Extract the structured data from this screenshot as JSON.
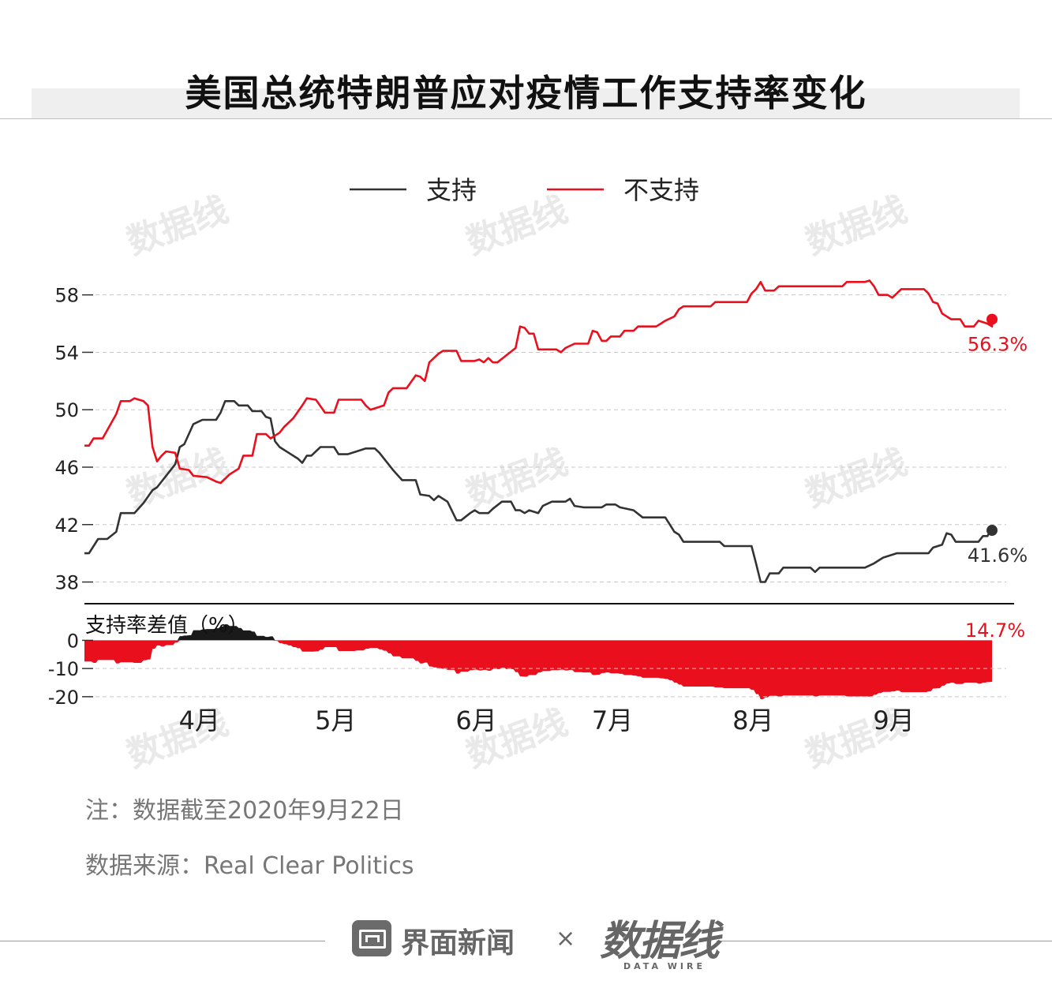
{
  "title": "美国总统特朗普应对疫情工作支持率变化",
  "note": "注：数据截至2020年9月22日",
  "source": "数据来源：Real Clear Politics",
  "footer": {
    "brand": "界面新闻",
    "separator": "×",
    "logo_text": "数据线",
    "logo_sub": "DATA WIRE"
  },
  "chart_data": [
    {
      "type": "line",
      "legend_position": "top-center",
      "grid": true,
      "x_start": "2020-03-06",
      "x_end": "2020-09-22",
      "x_ticks": [
        {
          "label": "4月",
          "date": "2020-03-31"
        },
        {
          "label": "5月",
          "date": "2020-04-30"
        },
        {
          "label": "6月",
          "date": "2020-05-31"
        },
        {
          "label": "7月",
          "date": "2020-06-30"
        },
        {
          "label": "8月",
          "date": "2020-07-31"
        },
        {
          "label": "9月",
          "date": "2020-08-31"
        }
      ],
      "ylim": [
        36.6,
        61.5
      ],
      "y_ticks": [
        38,
        42,
        46,
        50,
        54,
        58
      ],
      "series": [
        {
          "name": "支持",
          "color": "#333333",
          "end_label": "41.6%",
          "points": [
            [
              "2020-03-06",
              40.0
            ],
            [
              "2020-03-07",
              40.0
            ],
            [
              "2020-03-09",
              41.0
            ],
            [
              "2020-03-11",
              41.0
            ],
            [
              "2020-03-13",
              41.5
            ],
            [
              "2020-03-14",
              42.8
            ],
            [
              "2020-03-17",
              42.8
            ],
            [
              "2020-03-19",
              43.5
            ],
            [
              "2020-03-21",
              44.4
            ],
            [
              "2020-03-22",
              44.6
            ],
            [
              "2020-03-24",
              45.4
            ],
            [
              "2020-03-26",
              46.2
            ],
            [
              "2020-03-27",
              47.4
            ],
            [
              "2020-03-28",
              47.6
            ],
            [
              "2020-03-30",
              49.0
            ],
            [
              "2020-04-01",
              49.3
            ],
            [
              "2020-04-04",
              49.3
            ],
            [
              "2020-04-05",
              49.8
            ],
            [
              "2020-04-06",
              50.6
            ],
            [
              "2020-04-08",
              50.6
            ],
            [
              "2020-04-09",
              50.3
            ],
            [
              "2020-04-11",
              50.3
            ],
            [
              "2020-04-12",
              49.9
            ],
            [
              "2020-04-14",
              49.9
            ],
            [
              "2020-04-15",
              49.5
            ],
            [
              "2020-04-16",
              49.4
            ],
            [
              "2020-04-17",
              47.8
            ],
            [
              "2020-04-18",
              47.4
            ],
            [
              "2020-04-20",
              47.0
            ],
            [
              "2020-04-22",
              46.6
            ],
            [
              "2020-04-23",
              46.3
            ],
            [
              "2020-04-24",
              46.8
            ],
            [
              "2020-04-25",
              46.8
            ],
            [
              "2020-04-27",
              47.4
            ],
            [
              "2020-04-30",
              47.4
            ],
            [
              "2020-05-01",
              46.9
            ],
            [
              "2020-05-03",
              46.9
            ],
            [
              "2020-05-05",
              47.1
            ],
            [
              "2020-05-07",
              47.3
            ],
            [
              "2020-05-09",
              47.3
            ],
            [
              "2020-05-10",
              47.0
            ],
            [
              "2020-05-11",
              46.6
            ],
            [
              "2020-05-13",
              45.8
            ],
            [
              "2020-05-15",
              45.1
            ],
            [
              "2020-05-18",
              45.1
            ],
            [
              "2020-05-19",
              44.1
            ],
            [
              "2020-05-21",
              44.0
            ],
            [
              "2020-05-22",
              43.7
            ],
            [
              "2020-05-23",
              44.0
            ],
            [
              "2020-05-25",
              43.6
            ],
            [
              "2020-05-27",
              42.3
            ],
            [
              "2020-05-28",
              42.3
            ],
            [
              "2020-05-30",
              42.8
            ],
            [
              "2020-05-31",
              43.0
            ],
            [
              "2020-06-01",
              42.8
            ],
            [
              "2020-06-03",
              42.8
            ],
            [
              "2020-06-04",
              43.1
            ],
            [
              "2020-06-06",
              43.6
            ],
            [
              "2020-06-08",
              43.6
            ],
            [
              "2020-06-09",
              43.0
            ],
            [
              "2020-06-10",
              43.0
            ],
            [
              "2020-06-11",
              42.8
            ],
            [
              "2020-06-12",
              43.0
            ],
            [
              "2020-06-14",
              42.8
            ],
            [
              "2020-06-15",
              43.3
            ],
            [
              "2020-06-17",
              43.6
            ],
            [
              "2020-06-20",
              43.6
            ],
            [
              "2020-06-21",
              43.8
            ],
            [
              "2020-06-22",
              43.3
            ],
            [
              "2020-06-24",
              43.2
            ],
            [
              "2020-06-28",
              43.2
            ],
            [
              "2020-06-29",
              43.4
            ],
            [
              "2020-07-01",
              43.4
            ],
            [
              "2020-07-02",
              43.2
            ],
            [
              "2020-07-05",
              43.0
            ],
            [
              "2020-07-07",
              42.5
            ],
            [
              "2020-07-12",
              42.5
            ],
            [
              "2020-07-13",
              42.0
            ],
            [
              "2020-07-14",
              41.5
            ],
            [
              "2020-07-15",
              41.3
            ],
            [
              "2020-07-16",
              40.8
            ],
            [
              "2020-07-24",
              40.8
            ],
            [
              "2020-07-25",
              40.5
            ],
            [
              "2020-07-31",
              40.5
            ],
            [
              "2020-08-01",
              39.3
            ],
            [
              "2020-08-02",
              38.0
            ],
            [
              "2020-08-03",
              38.0
            ],
            [
              "2020-08-04",
              38.6
            ],
            [
              "2020-08-06",
              38.6
            ],
            [
              "2020-08-07",
              39.0
            ],
            [
              "2020-08-13",
              39.0
            ],
            [
              "2020-08-14",
              38.7
            ],
            [
              "2020-08-15",
              39.0
            ],
            [
              "2020-08-25",
              39.0
            ],
            [
              "2020-08-27",
              39.3
            ],
            [
              "2020-08-29",
              39.7
            ],
            [
              "2020-09-01",
              40.0
            ],
            [
              "2020-09-08",
              40.0
            ],
            [
              "2020-09-09",
              40.4
            ],
            [
              "2020-09-11",
              40.6
            ],
            [
              "2020-09-12",
              41.4
            ],
            [
              "2020-09-13",
              41.3
            ],
            [
              "2020-09-14",
              40.8
            ],
            [
              "2020-09-19",
              40.8
            ],
            [
              "2020-09-20",
              41.2
            ],
            [
              "2020-09-21",
              41.2
            ],
            [
              "2020-09-22",
              41.8
            ],
            [
              "2020-09-22",
              41.6
            ]
          ]
        },
        {
          "name": "不支持",
          "color": "#ea0f1d",
          "end_label": "56.3%",
          "points": [
            [
              "2020-03-06",
              47.5
            ],
            [
              "2020-03-07",
              47.5
            ],
            [
              "2020-03-08",
              48.0
            ],
            [
              "2020-03-10",
              48.0
            ],
            [
              "2020-03-13",
              49.7
            ],
            [
              "2020-03-14",
              50.6
            ],
            [
              "2020-03-16",
              50.6
            ],
            [
              "2020-03-17",
              50.8
            ],
            [
              "2020-03-19",
              50.6
            ],
            [
              "2020-03-20",
              50.3
            ],
            [
              "2020-03-21",
              47.4
            ],
            [
              "2020-03-22",
              46.4
            ],
            [
              "2020-03-23",
              46.8
            ],
            [
              "2020-03-24",
              47.1
            ],
            [
              "2020-03-26",
              47.0
            ],
            [
              "2020-03-27",
              45.9
            ],
            [
              "2020-03-29",
              45.8
            ],
            [
              "2020-03-30",
              45.4
            ],
            [
              "2020-04-02",
              45.3
            ],
            [
              "2020-04-04",
              45.0
            ],
            [
              "2020-04-05",
              44.9
            ],
            [
              "2020-04-07",
              45.5
            ],
            [
              "2020-04-09",
              45.9
            ],
            [
              "2020-04-10",
              46.8
            ],
            [
              "2020-04-12",
              46.8
            ],
            [
              "2020-04-13",
              48.3
            ],
            [
              "2020-04-15",
              48.3
            ],
            [
              "2020-04-16",
              48.0
            ],
            [
              "2020-04-18",
              48.4
            ],
            [
              "2020-04-19",
              48.8
            ],
            [
              "2020-04-21",
              49.4
            ],
            [
              "2020-04-23",
              50.3
            ],
            [
              "2020-04-24",
              50.8
            ],
            [
              "2020-04-26",
              50.7
            ],
            [
              "2020-04-28",
              49.8
            ],
            [
              "2020-04-30",
              49.8
            ],
            [
              "2020-05-01",
              50.7
            ],
            [
              "2020-05-06",
              50.7
            ],
            [
              "2020-05-07",
              50.3
            ],
            [
              "2020-05-08",
              50.0
            ],
            [
              "2020-05-10",
              50.2
            ],
            [
              "2020-05-11",
              50.3
            ],
            [
              "2020-05-12",
              51.2
            ],
            [
              "2020-05-13",
              51.5
            ],
            [
              "2020-05-16",
              51.5
            ],
            [
              "2020-05-18",
              52.4
            ],
            [
              "2020-05-19",
              52.3
            ],
            [
              "2020-05-20",
              52.0
            ],
            [
              "2020-05-21",
              53.3
            ],
            [
              "2020-05-23",
              53.9
            ],
            [
              "2020-05-24",
              54.1
            ],
            [
              "2020-05-27",
              54.1
            ],
            [
              "2020-05-28",
              53.4
            ],
            [
              "2020-05-31",
              53.4
            ],
            [
              "2020-06-01",
              53.5
            ],
            [
              "2020-06-02",
              53.3
            ],
            [
              "2020-06-03",
              53.6
            ],
            [
              "2020-06-04",
              53.3
            ],
            [
              "2020-06-05",
              53.3
            ],
            [
              "2020-06-07",
              53.8
            ],
            [
              "2020-06-09",
              54.3
            ],
            [
              "2020-06-10",
              55.8
            ],
            [
              "2020-06-11",
              55.7
            ],
            [
              "2020-06-12",
              55.3
            ],
            [
              "2020-06-13",
              55.3
            ],
            [
              "2020-06-14",
              54.2
            ],
            [
              "2020-06-18",
              54.2
            ],
            [
              "2020-06-19",
              54.0
            ],
            [
              "2020-06-20",
              54.3
            ],
            [
              "2020-06-22",
              54.6
            ],
            [
              "2020-06-25",
              54.6
            ],
            [
              "2020-06-26",
              55.5
            ],
            [
              "2020-06-27",
              55.4
            ],
            [
              "2020-06-28",
              54.8
            ],
            [
              "2020-06-29",
              54.8
            ],
            [
              "2020-06-30",
              55.1
            ],
            [
              "2020-07-02",
              55.1
            ],
            [
              "2020-07-03",
              55.5
            ],
            [
              "2020-07-05",
              55.5
            ],
            [
              "2020-07-06",
              55.8
            ],
            [
              "2020-07-10",
              55.8
            ],
            [
              "2020-07-11",
              56.0
            ],
            [
              "2020-07-12",
              56.2
            ],
            [
              "2020-07-14",
              56.5
            ],
            [
              "2020-07-15",
              57.0
            ],
            [
              "2020-07-16",
              57.2
            ],
            [
              "2020-07-22",
              57.2
            ],
            [
              "2020-07-23",
              57.5
            ],
            [
              "2020-07-30",
              57.5
            ],
            [
              "2020-07-31",
              58.1
            ],
            [
              "2020-08-01",
              58.4
            ],
            [
              "2020-08-02",
              58.9
            ],
            [
              "2020-08-03",
              58.3
            ],
            [
              "2020-08-05",
              58.3
            ],
            [
              "2020-08-06",
              58.6
            ],
            [
              "2020-08-20",
              58.6
            ],
            [
              "2020-08-21",
              58.9
            ],
            [
              "2020-08-25",
              58.9
            ],
            [
              "2020-08-26",
              59.0
            ],
            [
              "2020-08-27",
              58.6
            ],
            [
              "2020-08-28",
              58.0
            ],
            [
              "2020-08-30",
              58.0
            ],
            [
              "2020-08-31",
              57.8
            ],
            [
              "2020-09-02",
              58.4
            ],
            [
              "2020-09-07",
              58.4
            ],
            [
              "2020-09-08",
              58.1
            ],
            [
              "2020-09-09",
              57.5
            ],
            [
              "2020-09-10",
              57.4
            ],
            [
              "2020-09-11",
              56.7
            ],
            [
              "2020-09-13",
              56.3
            ],
            [
              "2020-09-15",
              56.3
            ],
            [
              "2020-09-16",
              55.8
            ],
            [
              "2020-09-18",
              55.8
            ],
            [
              "2020-09-19",
              56.2
            ],
            [
              "2020-09-21",
              56.0
            ],
            [
              "2020-09-22",
              55.8
            ],
            [
              "2020-09-22",
              56.3
            ]
          ]
        }
      ]
    },
    {
      "type": "area",
      "title": "支持率差值（%）",
      "grid": true,
      "ylim": [
        -22,
        6
      ],
      "y_ticks": [
        0,
        -10,
        -20
      ],
      "end_label": "14.7%",
      "positive_color": "#1a1a1a",
      "negative_color": "#ea0f1d",
      "derived_from": "支持 minus 不支持"
    }
  ]
}
